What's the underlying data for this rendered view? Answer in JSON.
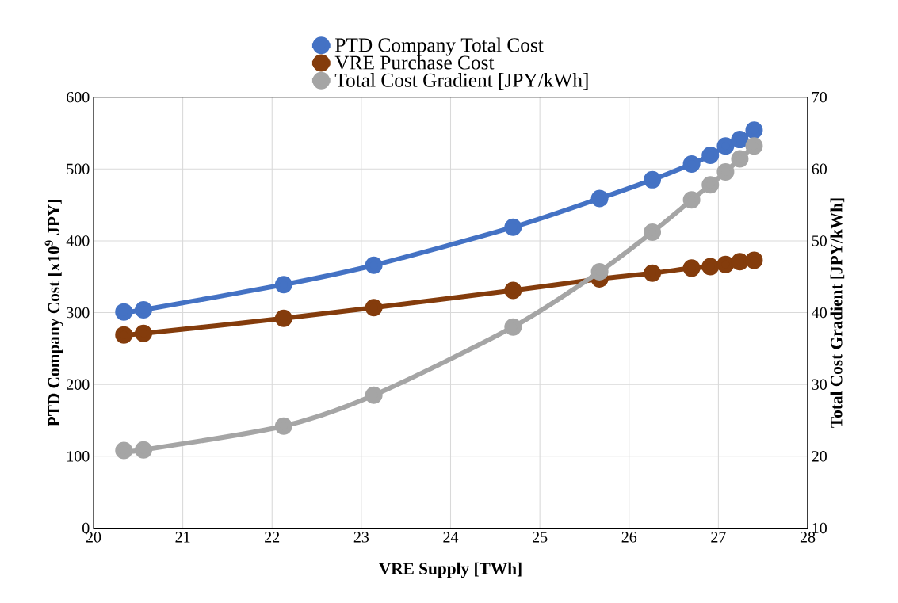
{
  "chart_data": {
    "type": "line",
    "xlabel": "VRE Supply [TWh]",
    "ylabel": "PTD Company Cost [x10$^{9}$ JPY]",
    "y2label": "Total Cost Gradient [JPY/kWh]",
    "x": [
      20.34,
      20.56,
      22.13,
      23.14,
      24.7,
      25.67,
      26.26,
      26.7,
      26.91,
      27.08,
      27.24,
      27.4
    ],
    "series": [
      {
        "name": "PTD Company Total Cost",
        "color": "#4472c4",
        "values": [
          301,
          304,
          339,
          366,
          419,
          459,
          485,
          507,
          519,
          532,
          541,
          554
        ]
      },
      {
        "name": "VRE Purchase Cost",
        "color": "#843c0c",
        "values": [
          269,
          271,
          292,
          307,
          331,
          347,
          355,
          362,
          364,
          367,
          371,
          373
        ]
      },
      {
        "name": "Total Cost Gradient [JPY/kWh]",
        "color": "#a5a5a5",
        "axis": "y2",
        "values": [
          20.8,
          20.9,
          24.2,
          28.5,
          38.0,
          45.7,
          51.2,
          55.7,
          57.8,
          59.6,
          61.4,
          63.2
        ]
      }
    ],
    "xlim": [
      20,
      28
    ],
    "xticks": [
      20,
      21,
      22,
      23,
      24,
      25,
      26,
      27,
      28
    ],
    "ylim": [
      0,
      600
    ],
    "yticks": [
      0,
      100,
      200,
      300,
      400,
      500,
      600
    ],
    "y2lim": [
      10,
      70
    ],
    "y2ticks": [
      10,
      20,
      30,
      40,
      50,
      60,
      70
    ],
    "grid": true,
    "legend": "top",
    "marker": "circle",
    "line_style": "solid"
  }
}
